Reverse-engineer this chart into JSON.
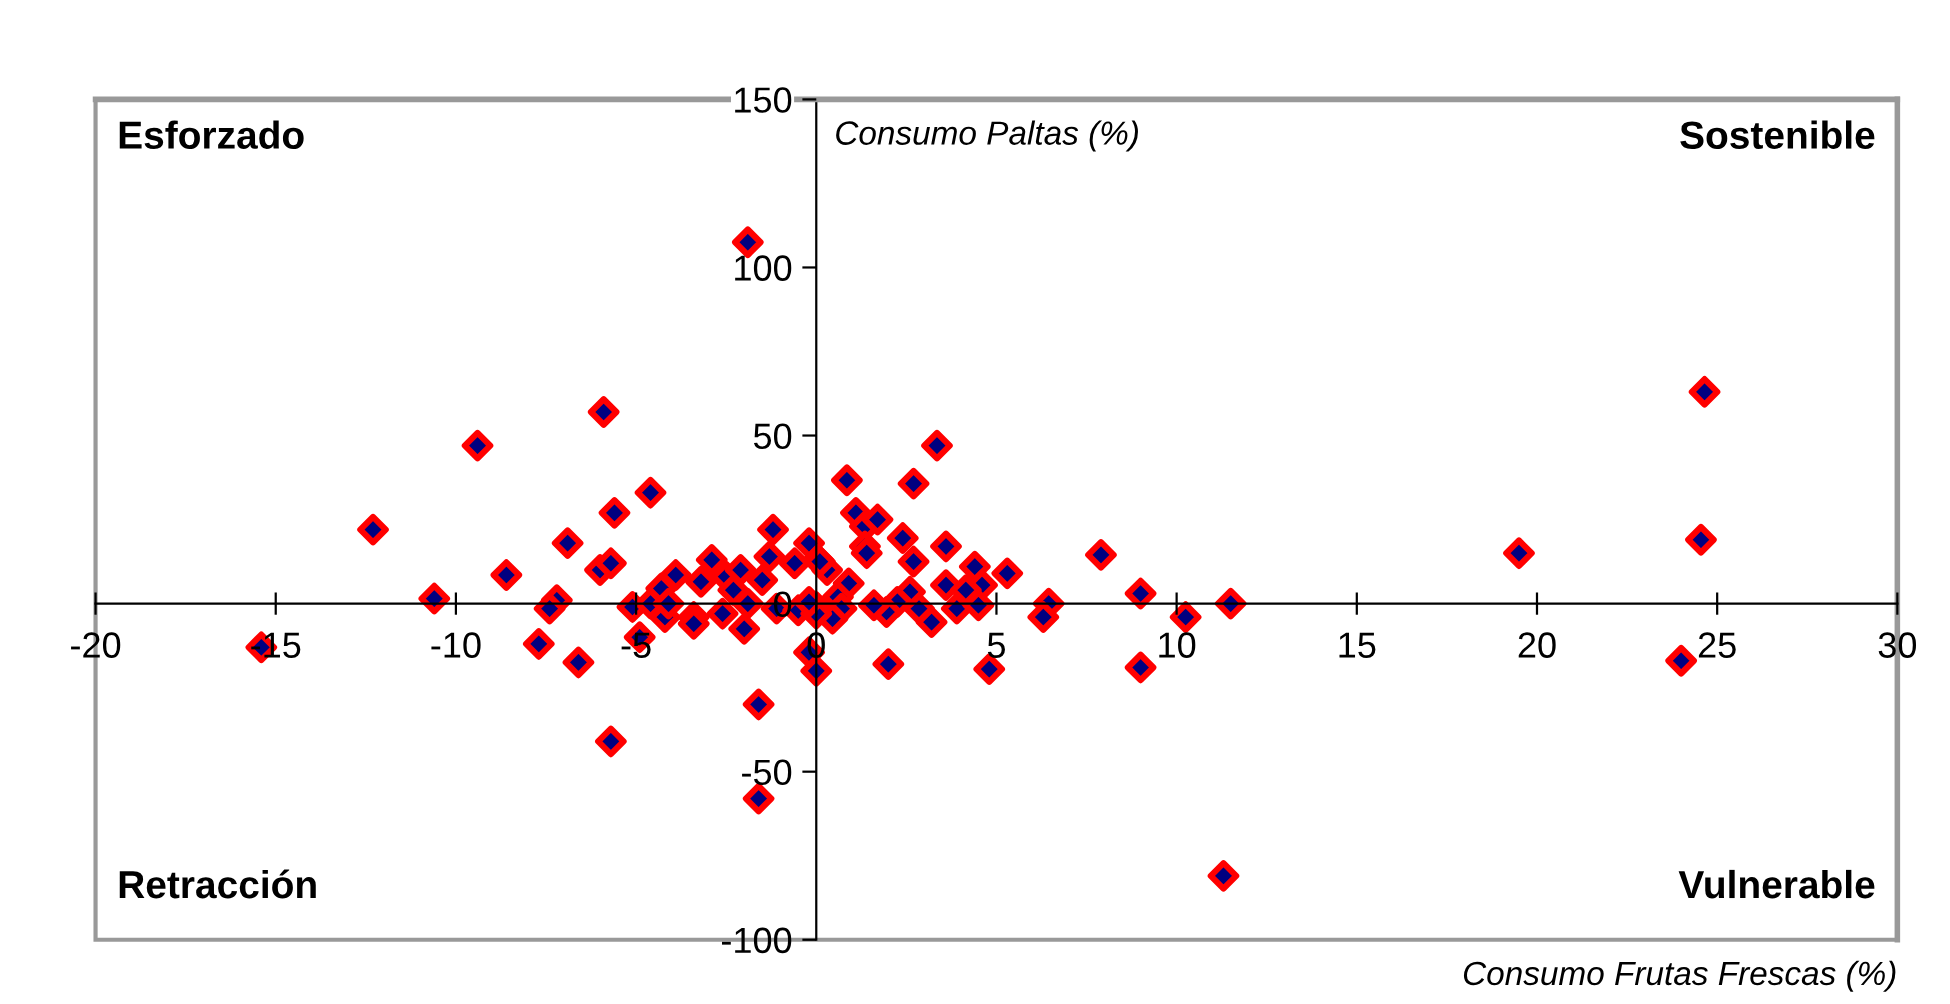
{
  "chart_data": {
    "type": "scatter",
    "xlabel": "Consumo Frutas Frescas (%)",
    "ylabel": "Consumo Paltas (%)",
    "annotations": [
      "Esforzado",
      "Sostenible",
      "Retracción",
      "Vulnerable"
    ],
    "xlim": [
      -20,
      30
    ],
    "xticks": [
      -20,
      -15,
      -10,
      -5,
      0,
      5,
      10,
      15,
      20,
      25,
      30
    ],
    "ylim": [
      -100,
      150
    ],
    "yticks": [
      -100,
      -50,
      0,
      50,
      100,
      150
    ],
    "grid": false,
    "marker": "diamond",
    "series": [
      {
        "color": "#ff0000",
        "x": [
          -1.9,
          -5.9,
          -9.4,
          -12.3,
          -4.6,
          -5.6,
          -6.9,
          -8.6,
          -6.0,
          -5.7,
          -10.6,
          -7.2,
          -7.4,
          -7.7,
          -6.6,
          -15.4,
          -5.7,
          -1.6,
          -1.6,
          -5.1,
          -4.9,
          -4.6,
          -4.3,
          -4.2,
          -4.1,
          -3.9,
          -3.4,
          -3.4,
          -3.2,
          -2.9,
          -2.6,
          -2.5,
          -2.3,
          -2.1,
          -2.0,
          -1.9,
          -1.5,
          -1.3,
          -1.2,
          -1.1,
          -0.6,
          -0.5,
          -0.2,
          -0.2,
          0,
          0,
          0.05,
          0.3,
          0.85,
          2.7,
          3.35,
          1.1,
          1.35,
          1.7,
          1.35,
          1.4,
          2.4,
          2.7,
          3.6,
          3.6,
          4.4,
          4.6,
          5.3,
          4.15,
          3.9,
          4.5,
          3.2,
          2.85,
          2.6,
          2.25,
          1.95,
          1.6,
          0.9,
          0.6,
          0.7,
          0.45,
          0,
          -0.2,
          0.1,
          2.0,
          4.8,
          9.0,
          7.9,
          9.0,
          6.45,
          6.3,
          10.25,
          11.5,
          19.5,
          24.65,
          24.55,
          24.0,
          11.3
        ],
        "values": [
          107.5,
          57,
          47,
          22,
          33,
          27,
          18,
          8.5,
          10,
          12,
          1.5,
          1,
          -1.5,
          -12,
          -17.5,
          -13,
          -41,
          -30,
          -58,
          -1,
          -10,
          0,
          4.5,
          -4,
          0,
          8.5,
          -4,
          -6,
          6.5,
          13,
          -3,
          8,
          4,
          10,
          -7.5,
          0,
          7,
          14,
          22,
          -1.5,
          12,
          -2,
          18,
          -14.5,
          -1,
          -20,
          13,
          10,
          36.7,
          35.7,
          47,
          27,
          23,
          25,
          17,
          15,
          19.5,
          12.5,
          17,
          5.5,
          11,
          5.5,
          9,
          4,
          -1.5,
          -0.5,
          -5.5,
          -1.5,
          3.5,
          0.5,
          -2.5,
          -0.5,
          6,
          2,
          -1.5,
          -4.5,
          -3,
          0.5,
          12.5,
          -18,
          -19.5,
          -19,
          14.5,
          3,
          0,
          -4,
          -4,
          0,
          15,
          63,
          19,
          -17,
          -81
        ]
      }
    ]
  }
}
